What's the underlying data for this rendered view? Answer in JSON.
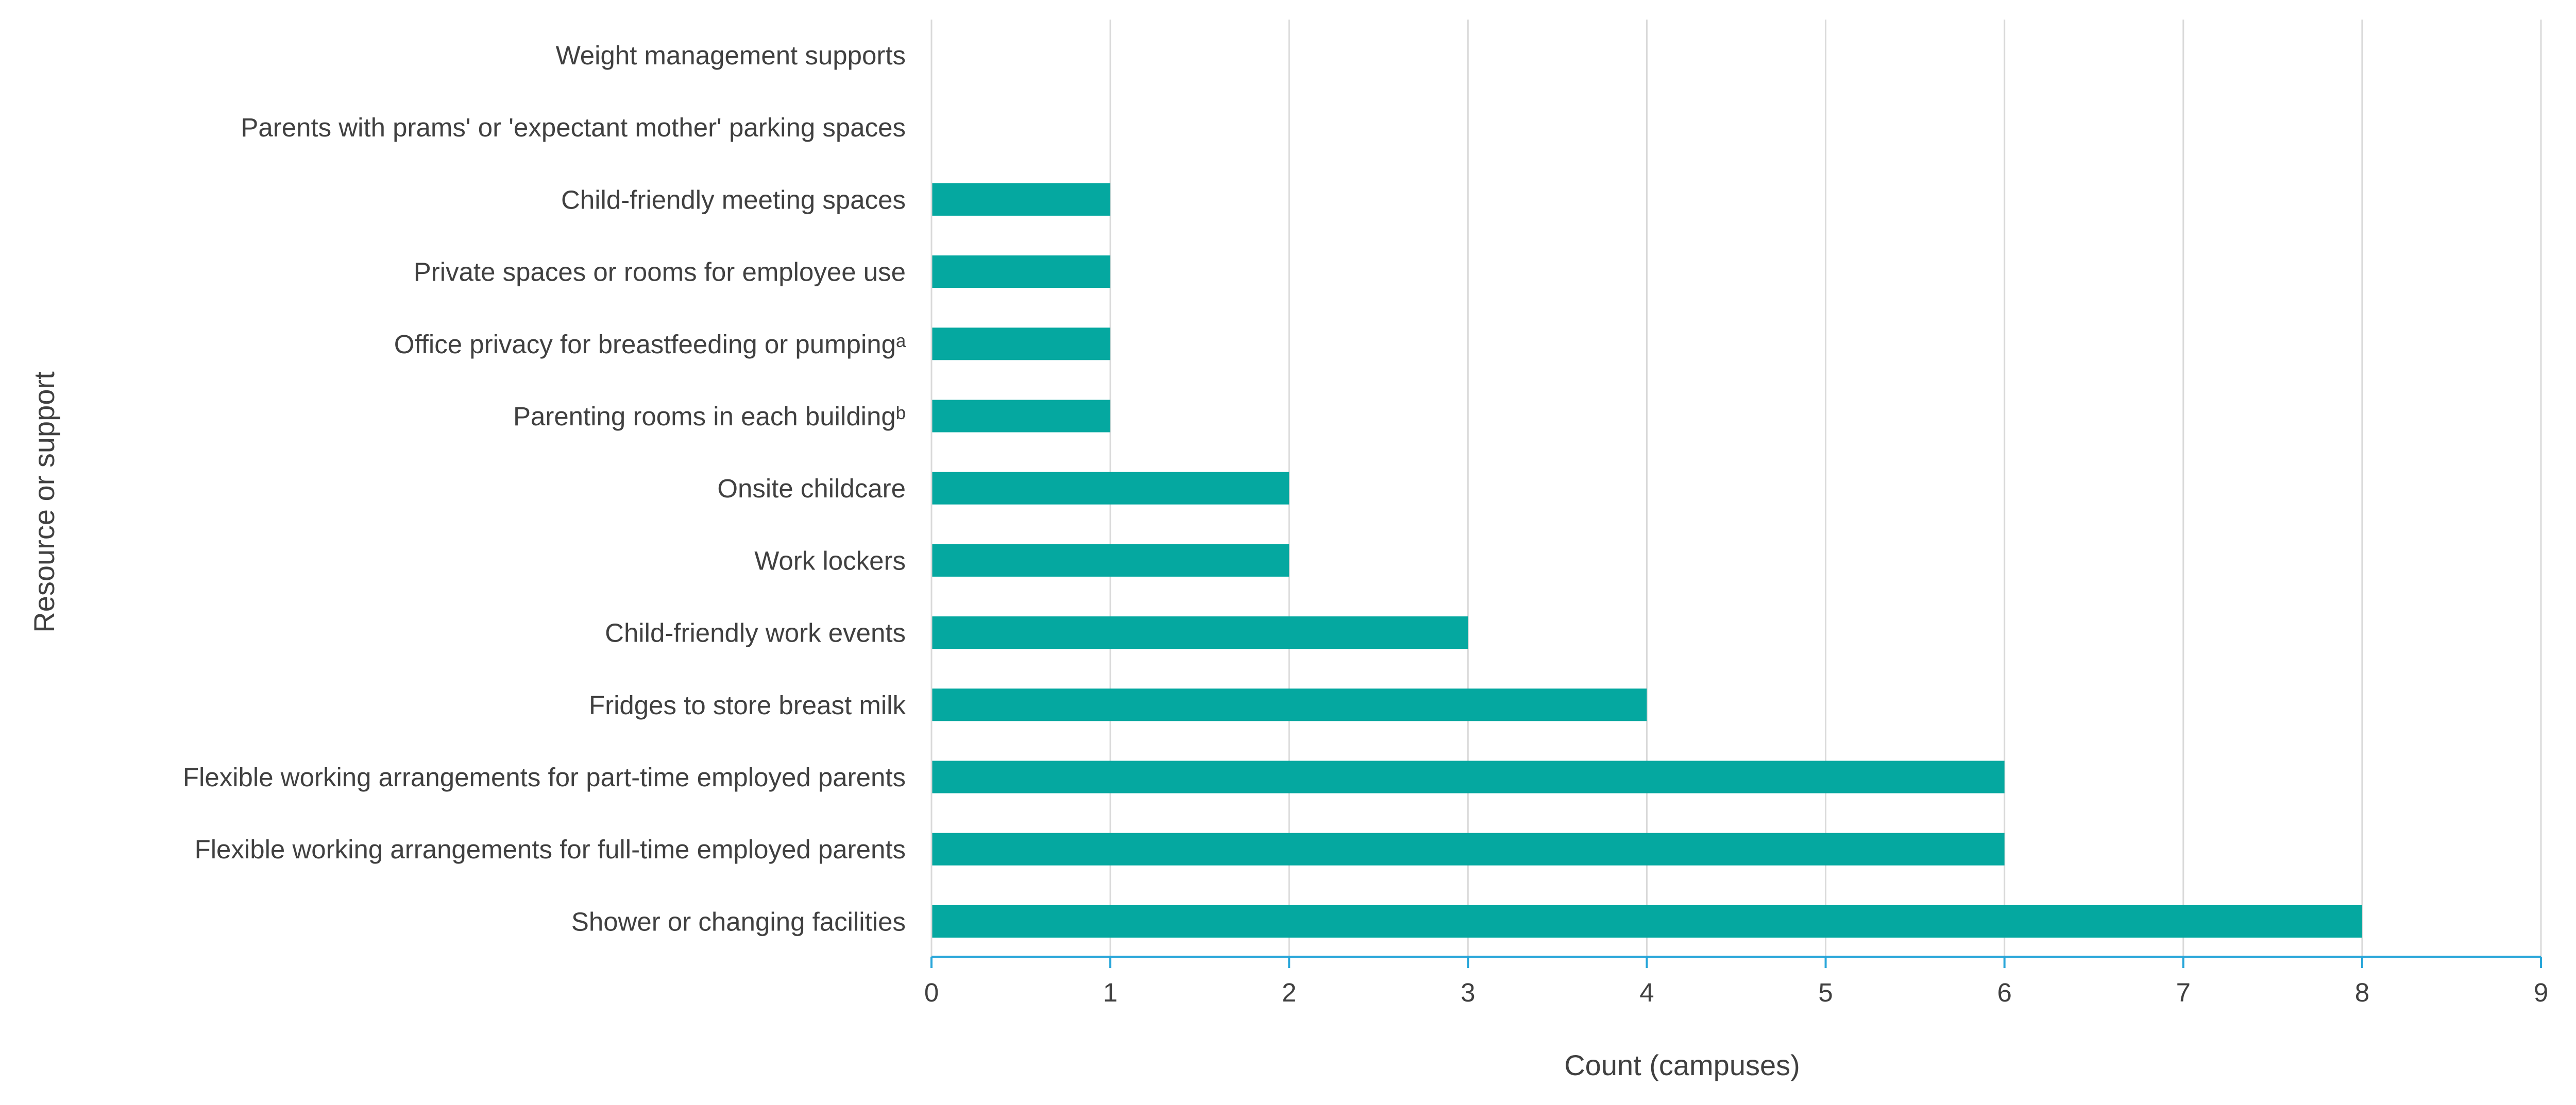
{
  "colors": {
    "bar": "#05A8A0",
    "grid": "#D9D9D9",
    "axis": "#29A6D9",
    "text": "#404040"
  },
  "chart_data": {
    "type": "bar",
    "orientation": "horizontal",
    "title": "",
    "xlabel": "Count (campuses)",
    "ylabel": "Resource or support",
    "xlim": [
      0,
      9
    ],
    "xticks": [
      "0",
      "1",
      "2",
      "3",
      "4",
      "5",
      "6",
      "7",
      "8",
      "9"
    ],
    "grid": true,
    "legend": "none",
    "categories": [
      "Weight management supports",
      "Parents with prams' or 'expectant mother' parking spaces",
      "Child-friendly meeting spaces",
      "Private spaces or rooms for employee use",
      "Office privacy for breastfeeding or pumpingᵃ",
      "Parenting rooms in each buildingᵇ",
      "Onsite childcare",
      "Work lockers",
      "Child-friendly work events",
      "Fridges to store breast milk",
      "Flexible working arrangements for part-time employed parents",
      "Flexible working arrangements for full-time employed parents",
      "Shower or changing facilities"
    ],
    "values": [
      0,
      0,
      1,
      1,
      1,
      1,
      2,
      2,
      3,
      4,
      6,
      6,
      8
    ]
  }
}
